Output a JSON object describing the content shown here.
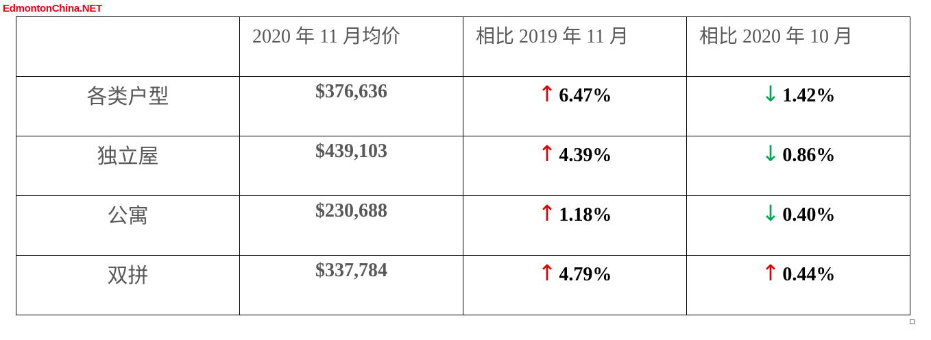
{
  "watermark": "EdmontonChina.NET",
  "table": {
    "header": [
      "2020 年 11 月均价",
      "相比 2019 年 11 月",
      "相比 2020 年 10 月"
    ],
    "rows": [
      {
        "type": "各类户型",
        "price": "$376,636",
        "yoy": {
          "arrow": "↑",
          "arrow_color": "#e00000",
          "value": "6.47%"
        },
        "mom": {
          "arrow": "↓",
          "arrow_color": "#00a651",
          "value": "1.42%"
        }
      },
      {
        "type": "独立屋",
        "price": "$439,103",
        "yoy": {
          "arrow": "↑",
          "arrow_color": "#e00000",
          "value": "4.39%"
        },
        "mom": {
          "arrow": "↓",
          "arrow_color": "#00a651",
          "value": "0.86%"
        }
      },
      {
        "type": "公寓",
        "price": "$230,688",
        "yoy": {
          "arrow": "↑",
          "arrow_color": "#e00000",
          "value": "1.18%"
        },
        "mom": {
          "arrow": "↓",
          "arrow_color": "#00a651",
          "value": "0.40%"
        }
      },
      {
        "type": "双拼",
        "price": "$337,784",
        "yoy": {
          "arrow": "↑",
          "arrow_color": "#e00000",
          "value": "4.79%"
        },
        "mom": {
          "arrow": "↑",
          "arrow_color": "#e00000",
          "value": "0.44%"
        }
      }
    ]
  }
}
